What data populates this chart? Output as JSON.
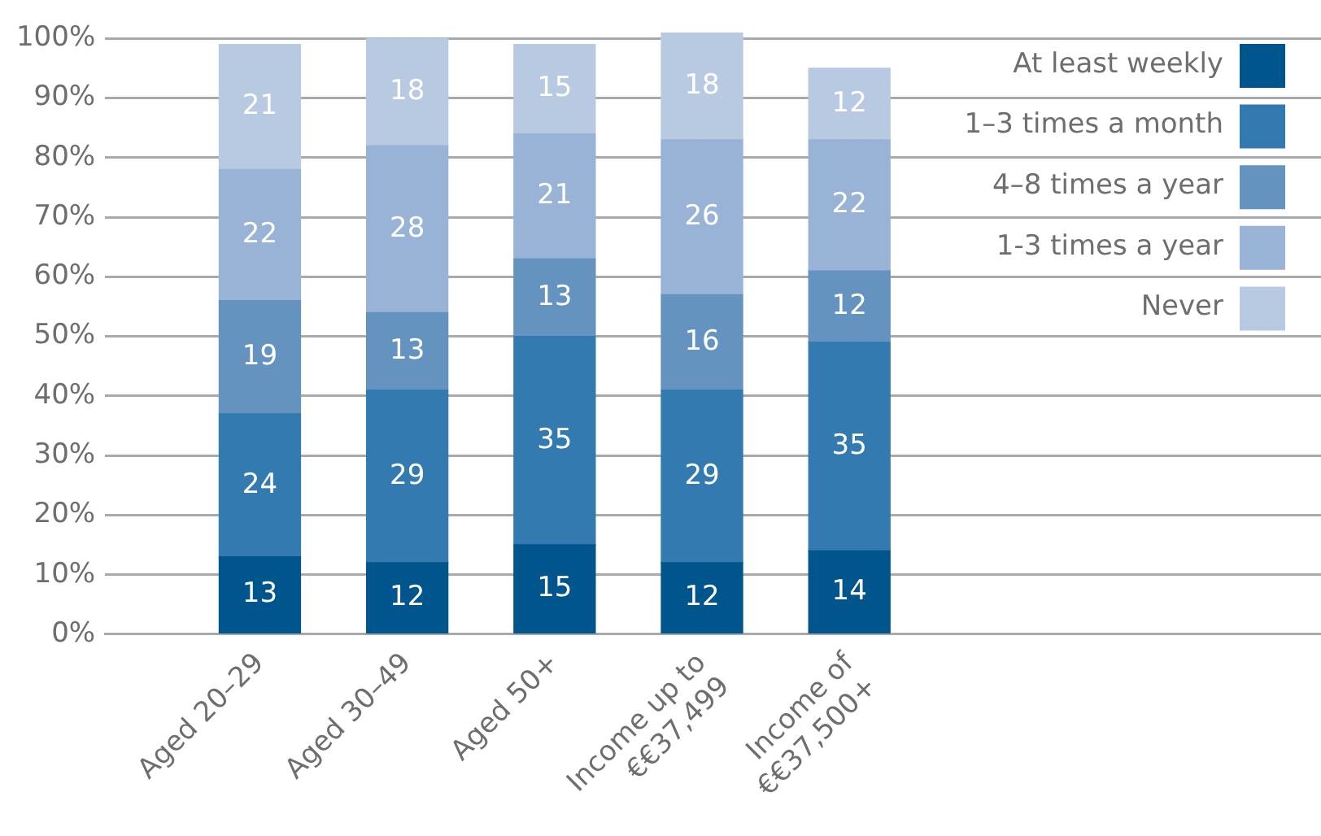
{
  "chart_data": {
    "type": "bar",
    "stacked": true,
    "categories": [
      "Aged 20–29",
      "Aged 30–49",
      "Aged 50+",
      "Income up to\n€€37,499",
      "Income of\n€€37,500+"
    ],
    "series": [
      {
        "name": "At least weekly",
        "color": "#00558c",
        "values": [
          13,
          12,
          15,
          12,
          14
        ]
      },
      {
        "name": "1–3 times a month",
        "color": "#337ab0",
        "values": [
          24,
          29,
          35,
          29,
          35
        ]
      },
      {
        "name": "4–8 times a year",
        "color": "#6593c0",
        "values": [
          19,
          13,
          13,
          16,
          12
        ]
      },
      {
        "name": "1-3 times a year",
        "color": "#98b3d5",
        "values": [
          22,
          28,
          21,
          26,
          22
        ]
      },
      {
        "name": "Never",
        "color": "#b8c9e2",
        "values": [
          21,
          18,
          15,
          18,
          12
        ]
      }
    ],
    "ylim": [
      0,
      101
    ],
    "yticks": [
      {
        "value": 0,
        "label": "0%"
      },
      {
        "value": 10,
        "label": "10%"
      },
      {
        "value": 20,
        "label": "20%"
      },
      {
        "value": 30,
        "label": "30%"
      },
      {
        "value": 40,
        "label": "40%"
      },
      {
        "value": 50,
        "label": "50%"
      },
      {
        "value": 60,
        "label": "60%"
      },
      {
        "value": 70,
        "label": "70%"
      },
      {
        "value": 80,
        "label": "80%"
      },
      {
        "value": 90,
        "label": "90%"
      },
      {
        "value": 100,
        "label": "100%"
      }
    ],
    "grid": "y",
    "legend": "top right",
    "data_labels": true
  }
}
